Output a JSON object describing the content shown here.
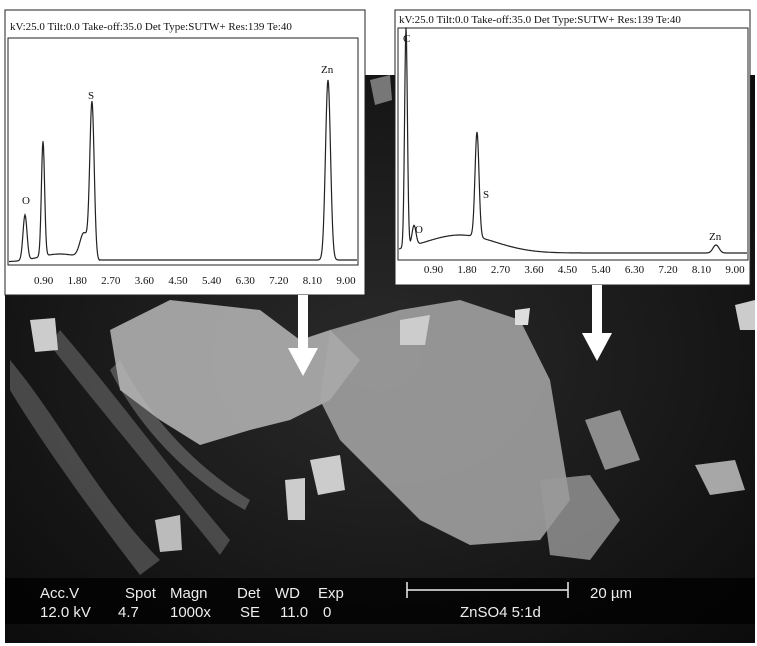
{
  "left_spectrum": {
    "header": "kV:25.0 Tilt:0.0 Take-off:35.0 Det Type:SUTW+ Res:139 Te:40",
    "ticks": [
      "0.90",
      "1.80",
      "2.70",
      "3.60",
      "4.50",
      "5.40",
      "6.30",
      "7.20",
      "8.10",
      "9.00"
    ],
    "peaks": [
      "O",
      "S",
      "Zn"
    ]
  },
  "right_spectrum": {
    "header": "kV:25.0 Tilt:0.0 Take-off:35.0 Det Type:SUTW+ Res:139 Te:40",
    "ticks": [
      "0.90",
      "1.80",
      "2.70",
      "3.60",
      "4.50",
      "5.40",
      "6.30",
      "7.20",
      "8.10",
      "9.00"
    ],
    "peaks": [
      "C",
      "O",
      "S",
      "Zn"
    ]
  },
  "info_bar": {
    "headers": [
      "Acc.V",
      "Spot",
      "Magn",
      "Det",
      "WD",
      "Exp"
    ],
    "values": [
      "12.0 kV",
      "4.7",
      "1000x",
      "SE",
      "11.0",
      "0"
    ],
    "scale": "20 µm",
    "sample": "ZnSO4 5:1d"
  }
}
